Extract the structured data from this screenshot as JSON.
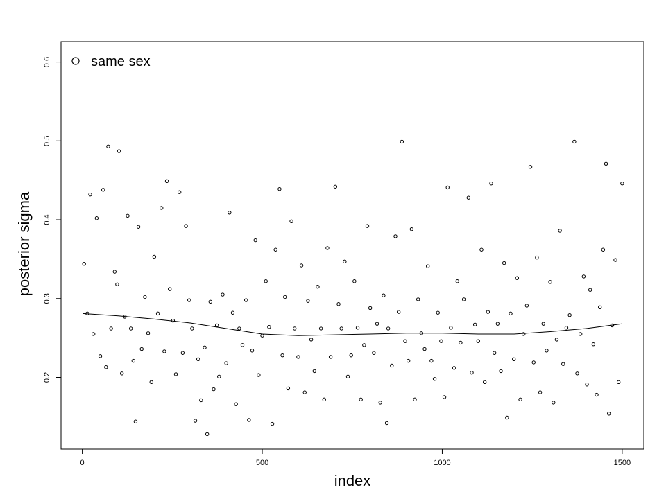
{
  "chart_data": {
    "type": "scatter",
    "xlabel": "index",
    "ylabel": "posterior sigma",
    "xlim": [
      -59,
      1560
    ],
    "ylim": [
      0.109,
      0.626
    ],
    "xticks": [
      0,
      500,
      1000,
      1500
    ],
    "yticks": [
      0.2,
      0.3,
      0.4,
      0.5,
      0.6
    ],
    "legend": "topleft",
    "series": [
      {
        "name": "same sex",
        "color": "#000000",
        "x": [
          5,
          14,
          22,
          31,
          40,
          50,
          58,
          66,
          72,
          80,
          90,
          97,
          102,
          110,
          118,
          126,
          135,
          142,
          148,
          156,
          165,
          174,
          183,
          192,
          200,
          210,
          220,
          228,
          235,
          243,
          252,
          260,
          270,
          279,
          288,
          297,
          305,
          314,
          322,
          330,
          340,
          347,
          356,
          365,
          374,
          380,
          390,
          400,
          409,
          418,
          427,
          436,
          445,
          455,
          463,
          472,
          481,
          490,
          500,
          510,
          519,
          528,
          537,
          548,
          556,
          563,
          572,
          581,
          590,
          600,
          609,
          618,
          627,
          636,
          645,
          654,
          663,
          672,
          681,
          690,
          703,
          712,
          720,
          729,
          738,
          747,
          756,
          765,
          774,
          783,
          792,
          800,
          810,
          819,
          828,
          837,
          846,
          850,
          860,
          870,
          879,
          888,
          897,
          906,
          915,
          924,
          933,
          942,
          951,
          960,
          970,
          979,
          988,
          997,
          1006,
          1015,
          1024,
          1033,
          1042,
          1051,
          1060,
          1073,
          1082,
          1091,
          1100,
          1109,
          1118,
          1127,
          1136,
          1145,
          1154,
          1163,
          1172,
          1180,
          1190,
          1199,
          1208,
          1217,
          1226,
          1235,
          1245,
          1254,
          1263,
          1272,
          1281,
          1290,
          1300,
          1309,
          1318,
          1327,
          1336,
          1345,
          1354,
          1367,
          1375,
          1384,
          1393,
          1402,
          1411,
          1420,
          1429,
          1438,
          1447,
          1455,
          1463,
          1472,
          1481,
          1490,
          1500
        ],
        "values": [
          0.344,
          0.281,
          0.432,
          0.255,
          0.402,
          0.227,
          0.438,
          0.213,
          0.493,
          0.262,
          0.334,
          0.318,
          0.487,
          0.205,
          0.277,
          0.405,
          0.262,
          0.221,
          0.144,
          0.391,
          0.236,
          0.302,
          0.256,
          0.194,
          0.353,
          0.281,
          0.415,
          0.233,
          0.449,
          0.312,
          0.272,
          0.204,
          0.435,
          0.231,
          0.392,
          0.298,
          0.262,
          0.145,
          0.223,
          0.171,
          0.238,
          0.128,
          0.296,
          0.185,
          0.266,
          0.201,
          0.305,
          0.218,
          0.409,
          0.282,
          0.166,
          0.262,
          0.241,
          0.298,
          0.146,
          0.234,
          0.374,
          0.203,
          0.253,
          0.322,
          0.264,
          0.141,
          0.362,
          0.439,
          0.228,
          0.302,
          0.186,
          0.398,
          0.262,
          0.226,
          0.342,
          0.181,
          0.297,
          0.248,
          0.208,
          0.315,
          0.262,
          0.172,
          0.364,
          0.226,
          0.442,
          0.293,
          0.262,
          0.347,
          0.201,
          0.228,
          0.322,
          0.263,
          0.172,
          0.241,
          0.392,
          0.288,
          0.231,
          0.268,
          0.168,
          0.304,
          0.142,
          0.262,
          0.215,
          0.379,
          0.283,
          0.499,
          0.246,
          0.221,
          0.388,
          0.172,
          0.299,
          0.256,
          0.236,
          0.341,
          0.221,
          0.198,
          0.282,
          0.246,
          0.175,
          0.441,
          0.263,
          0.212,
          0.322,
          0.244,
          0.299,
          0.428,
          0.206,
          0.267,
          0.246,
          0.362,
          0.194,
          0.283,
          0.446,
          0.231,
          0.268,
          0.208,
          0.345,
          0.149,
          0.281,
          0.223,
          0.326,
          0.172,
          0.255,
          0.291,
          0.467,
          0.219,
          0.352,
          0.181,
          0.268,
          0.234,
          0.321,
          0.168,
          0.248,
          0.386,
          0.217,
          0.263,
          0.279,
          0.499,
          0.205,
          0.255,
          0.328,
          0.191,
          0.311,
          0.242,
          0.178,
          0.289,
          0.362,
          0.471,
          0.154,
          0.266,
          0.349,
          0.194,
          0.446
        ]
      }
    ],
    "trend": {
      "color": "#000000",
      "x": [
        1,
        100,
        200,
        300,
        400,
        500,
        600,
        700,
        800,
        900,
        1000,
        1100,
        1200,
        1300,
        1400,
        1500
      ],
      "values": [
        0.281,
        0.278,
        0.274,
        0.269,
        0.262,
        0.255,
        0.253,
        0.254,
        0.255,
        0.256,
        0.256,
        0.255,
        0.255,
        0.258,
        0.262,
        0.268
      ]
    }
  }
}
